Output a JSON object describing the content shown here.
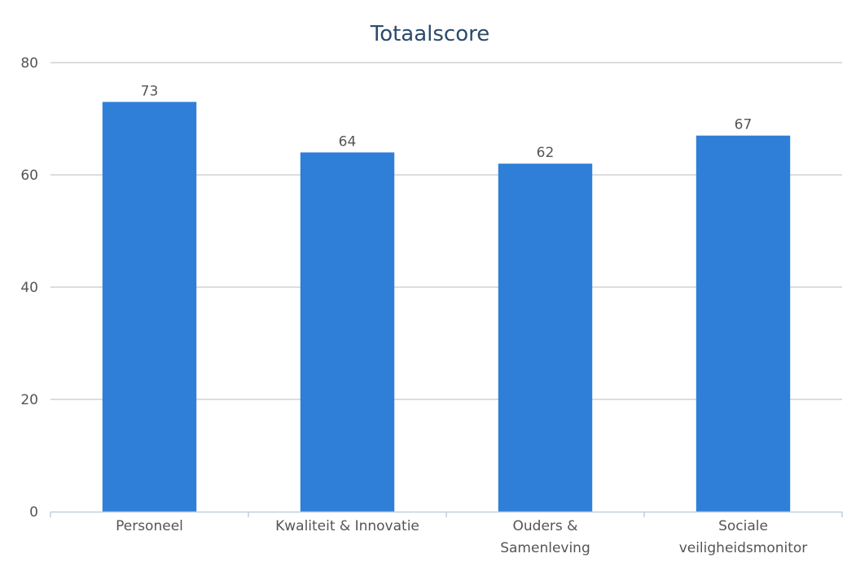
{
  "chart_data": {
    "type": "bar",
    "title": "Totaalscore",
    "categories": [
      [
        "Personeel"
      ],
      [
        "Kwaliteit & Innovatie"
      ],
      [
        "Ouders &",
        "Samenleving"
      ],
      [
        "Sociale",
        "veiligheidsmonitor"
      ]
    ],
    "values": [
      73,
      64,
      62,
      67
    ],
    "value_labels": [
      "73",
      "64",
      "62",
      "67"
    ],
    "yticks": [
      0,
      20,
      40,
      60,
      80
    ],
    "ylim": [
      0,
      80
    ],
    "grid": true,
    "legend": "none",
    "bar_color": "#2f7fd8",
    "title_color": "#2b4a6b"
  }
}
